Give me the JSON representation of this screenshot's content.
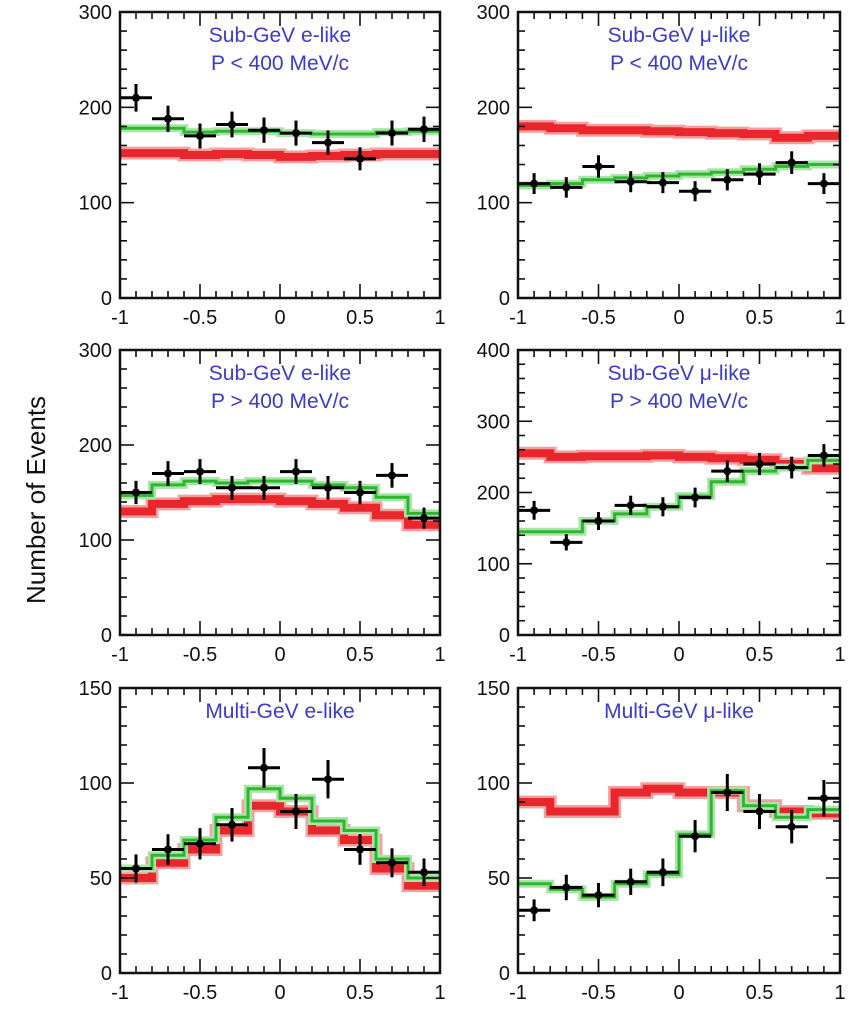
{
  "ylabel": "Number of Events",
  "colors": {
    "data": "#000000",
    "no_osc": "#e8262b",
    "no_osc_band": "#f5a0a0",
    "osc": "#2fb52f",
    "osc_band": "#a8e6a8",
    "title": "#3a3acf"
  },
  "chart_data": [
    {
      "type": "line",
      "title": "Sub-GeV e-like",
      "subtitle": "P < 400 MeV/c",
      "xlim": [
        -1,
        1
      ],
      "ylim": [
        0,
        300
      ],
      "xticks": [
        "-1",
        "-0.5",
        "0",
        "0.5",
        "1"
      ],
      "yticks": [
        "0",
        "100",
        "200",
        "300"
      ],
      "x": [
        -0.9,
        -0.7,
        -0.5,
        -0.3,
        -0.1,
        0.1,
        0.3,
        0.5,
        0.7,
        0.9
      ],
      "series": [
        {
          "values": [
            152,
            152,
            150,
            151,
            150,
            148,
            149,
            150,
            151,
            151
          ]
        },
        {
          "values": [
            178,
            178,
            174,
            175,
            175,
            173,
            172,
            172,
            174,
            175
          ]
        },
        {
          "values": [
            210,
            188,
            170,
            182,
            176,
            173,
            163,
            146,
            173,
            177
          ]
        }
      ]
    },
    {
      "type": "line",
      "title": "Sub-GeV μ-like",
      "subtitle": "P < 400 MeV/c",
      "xlim": [
        -1,
        1
      ],
      "ylim": [
        0,
        300
      ],
      "xticks": [
        "-1",
        "-0.5",
        "0",
        "0.5",
        "1"
      ],
      "yticks": [
        "0",
        "100",
        "200",
        "300"
      ],
      "x": [
        -0.9,
        -0.7,
        -0.5,
        -0.3,
        -0.1,
        0.1,
        0.3,
        0.5,
        0.7,
        0.9
      ],
      "series": [
        {
          "values": [
            180,
            178,
            176,
            176,
            175,
            174,
            173,
            172,
            168,
            170
          ]
        },
        {
          "values": [
            118,
            120,
            124,
            126,
            128,
            130,
            132,
            135,
            138,
            140
          ]
        },
        {
          "values": [
            120,
            116,
            138,
            122,
            121,
            112,
            124,
            130,
            142,
            120
          ]
        }
      ]
    },
    {
      "type": "line",
      "title": "Sub-GeV e-like",
      "subtitle": "P > 400 MeV/c",
      "xlim": [
        -1,
        1
      ],
      "ylim": [
        0,
        300
      ],
      "xticks": [
        "-1",
        "-0.5",
        "0",
        "0.5",
        "1"
      ],
      "yticks": [
        "0",
        "100",
        "200",
        "300"
      ],
      "x": [
        -0.9,
        -0.7,
        -0.5,
        -0.3,
        -0.1,
        0.1,
        0.3,
        0.5,
        0.7,
        0.9
      ],
      "series": [
        {
          "values": [
            130,
            138,
            141,
            143,
            143,
            141,
            138,
            134,
            126,
            116
          ]
        },
        {
          "values": [
            147,
            158,
            162,
            160,
            162,
            162,
            158,
            155,
            145,
            128
          ]
        },
        {
          "values": [
            150,
            170,
            172,
            155,
            155,
            172,
            155,
            150,
            168,
            123
          ]
        }
      ]
    },
    {
      "type": "line",
      "title": "Sub-GeV μ-like",
      "subtitle": "P > 400 MeV/c",
      "xlim": [
        -1,
        1
      ],
      "ylim": [
        0,
        400
      ],
      "xticks": [
        "-1",
        "-0.5",
        "0",
        "0.5",
        "1"
      ],
      "yticks": [
        "0",
        "100",
        "200",
        "300",
        "400"
      ],
      "x": [
        -0.9,
        -0.7,
        -0.5,
        -0.3,
        -0.1,
        0.1,
        0.3,
        0.5,
        0.7,
        0.9
      ],
      "series": [
        {
          "values": [
            255,
            250,
            251,
            251,
            252,
            250,
            248,
            246,
            240,
            234
          ]
        },
        {
          "values": [
            145,
            145,
            160,
            170,
            180,
            195,
            215,
            230,
            235,
            245
          ]
        },
        {
          "values": [
            175,
            130,
            160,
            182,
            180,
            193,
            230,
            240,
            235,
            252
          ]
        }
      ]
    },
    {
      "type": "line",
      "title": "Multi-GeV e-like",
      "subtitle": "",
      "xlim": [
        -1,
        1
      ],
      "ylim": [
        0,
        150
      ],
      "xticks": [
        "-1",
        "-0.5",
        "0",
        "0.5",
        "1"
      ],
      "yticks": [
        "0",
        "50",
        "100",
        "150"
      ],
      "x": [
        -0.9,
        -0.7,
        -0.5,
        -0.3,
        -0.1,
        0.1,
        0.3,
        0.5,
        0.7,
        0.9
      ],
      "series": [
        {
          "values": [
            50,
            58,
            65,
            75,
            88,
            85,
            75,
            70,
            55,
            46
          ]
        },
        {
          "values": [
            55,
            62,
            70,
            82,
            97,
            92,
            80,
            75,
            60,
            50
          ]
        },
        {
          "values": [
            55,
            65,
            68,
            78,
            108,
            85,
            102,
            65,
            58,
            53
          ]
        }
      ]
    },
    {
      "type": "line",
      "title": "Multi-GeV μ-like",
      "subtitle": "",
      "xlim": [
        -1,
        1
      ],
      "ylim": [
        0,
        150
      ],
      "xticks": [
        "-1",
        "-0.5",
        "0",
        "0.5",
        "1"
      ],
      "yticks": [
        "0",
        "50",
        "100",
        "150"
      ],
      "x": [
        -0.9,
        -0.7,
        -0.5,
        -0.3,
        -0.1,
        0.1,
        0.3,
        0.5,
        0.7,
        0.9
      ],
      "series": [
        {
          "values": [
            90,
            85,
            85,
            95,
            97,
            95,
            95,
            88,
            85,
            84
          ]
        },
        {
          "values": [
            47,
            44,
            40,
            47,
            52,
            73,
            96,
            88,
            82,
            86
          ]
        },
        {
          "values": [
            33,
            45,
            41,
            48,
            53,
            72,
            95,
            85,
            77,
            92
          ]
        }
      ]
    }
  ]
}
